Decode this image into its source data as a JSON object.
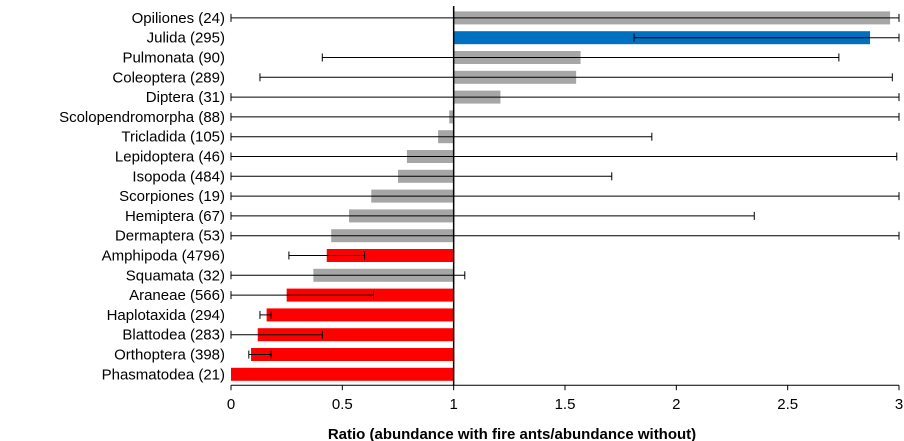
{
  "chart_data": {
    "type": "bar",
    "orientation": "horizontal",
    "title": "",
    "xlabel": "Ratio (abundance with fire ants/abundance without)",
    "ylabel": "",
    "xlim": [
      0,
      3
    ],
    "xticks": [
      0,
      0.5,
      1,
      1.5,
      2,
      2.5,
      3
    ],
    "xtick_labels": [
      "0",
      "0.5",
      "1",
      "1.5",
      "2",
      "2.5",
      "3"
    ],
    "reference_line": 1,
    "grid": false,
    "legend": "none",
    "colors": {
      "neutral": "#a6a6a6",
      "increase": "#0070c0",
      "decrease": "#ff0000"
    },
    "categories": [
      "Opiliones (24)",
      "Julida (295)",
      "Pulmonata (90)",
      "Coleoptera (289)",
      "Diptera (31)",
      "Scolopendromorpha (88)",
      "Tricladida (105)",
      "Lepidoptera (46)",
      "Isopoda (484)",
      "Scorpiones (19)",
      "Hemiptera (67)",
      "Dermaptera (53)",
      "Amphipoda (4796)",
      "Squamata (32)",
      "Araneae (566)",
      "Haplotaxida (294)",
      "Blattodea (283)",
      "Orthoptera (398)",
      "Phasmatodea (21)"
    ],
    "values": [
      2.96,
      2.87,
      1.57,
      1.55,
      1.21,
      0.98,
      0.93,
      0.79,
      0.75,
      0.63,
      0.53,
      0.45,
      0.43,
      0.37,
      0.25,
      0.16,
      0.12,
      0.09,
      0.0
    ],
    "error_low": [
      0.0,
      1.81,
      0.41,
      0.13,
      0.0,
      0.0,
      0.0,
      0.0,
      0.0,
      0.0,
      0.0,
      0.0,
      0.26,
      0.0,
      0.0,
      0.13,
      0.0,
      0.08,
      null
    ],
    "error_high": [
      3.0,
      3.0,
      2.73,
      2.97,
      3.0,
      3.0,
      1.89,
      2.99,
      1.71,
      3.0,
      2.35,
      3.0,
      0.6,
      1.05,
      0.64,
      0.18,
      0.41,
      0.18,
      null
    ],
    "bar_colors": [
      "neutral",
      "increase",
      "neutral",
      "neutral",
      "neutral",
      "neutral",
      "neutral",
      "neutral",
      "neutral",
      "neutral",
      "neutral",
      "neutral",
      "decrease",
      "neutral",
      "decrease",
      "decrease",
      "decrease",
      "decrease",
      "decrease"
    ]
  }
}
